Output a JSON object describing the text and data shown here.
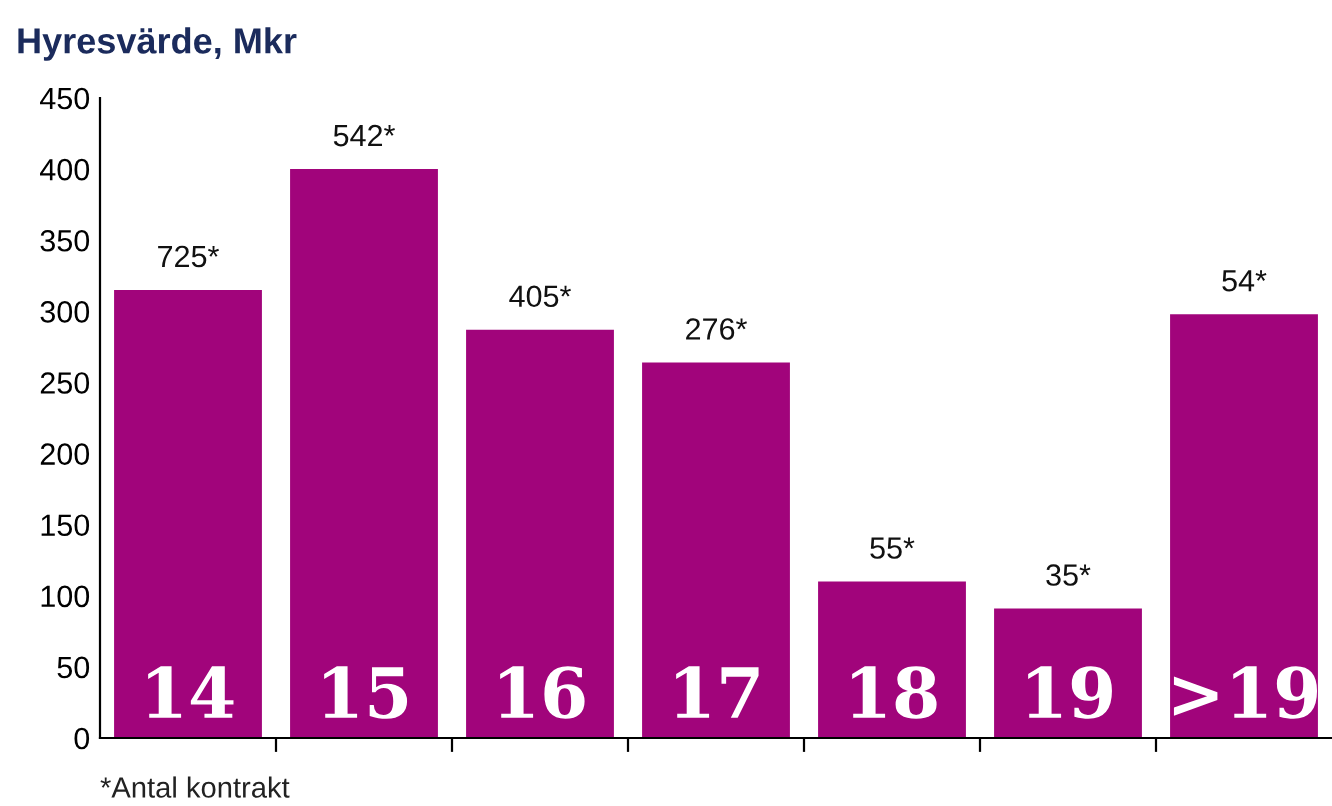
{
  "chart_data": {
    "type": "bar",
    "title": "Hyresvärde, Mkr",
    "categories": [
      "14",
      "15",
      "16",
      "17",
      "18",
      "19",
      ">19"
    ],
    "values": [
      315,
      400,
      287,
      264,
      110,
      91,
      298
    ],
    "color": "#a1047b",
    "ylim": [
      0,
      450
    ],
    "yticks": [
      0,
      50,
      100,
      150,
      200,
      250,
      300,
      350,
      400,
      450
    ],
    "grid": false,
    "legend": false,
    "annotations": [
      {
        "text": "725*",
        "x": "14",
        "y": 315
      },
      {
        "text": "542*",
        "x": "15",
        "y": 400
      },
      {
        "text": "405*",
        "x": "16",
        "y": 287
      },
      {
        "text": "276*",
        "x": "17",
        "y": 264
      },
      {
        "text": "55*",
        "x": "18",
        "y": 110
      },
      {
        "text": "35*",
        "x": "19",
        "y": 91
      },
      {
        "text": "54*",
        "x": ">19",
        "y": 298
      },
      "*Antal kontrakt"
    ]
  }
}
